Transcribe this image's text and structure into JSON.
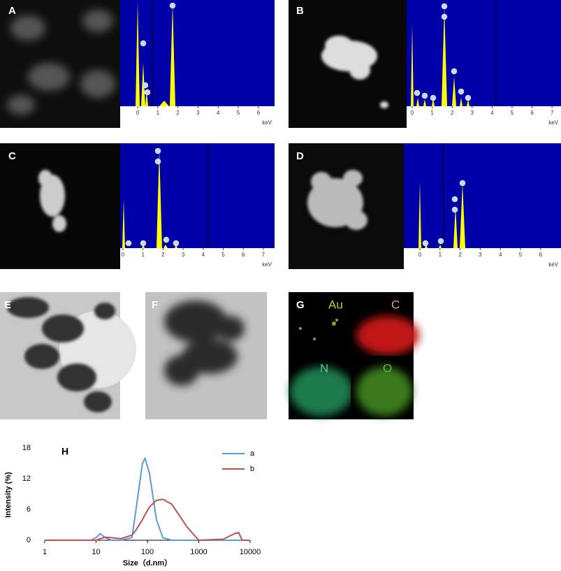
{
  "panels": {
    "A": {
      "label": "A",
      "kev_ticks": [
        0,
        1,
        2,
        3,
        4,
        5,
        6
      ],
      "unit": "keV"
    },
    "B": {
      "label": "B",
      "kev_ticks": [
        0,
        1,
        2,
        3,
        4,
        5,
        6,
        7
      ],
      "unit": "keV"
    },
    "C": {
      "label": "C",
      "kev_ticks": [
        0,
        1,
        2,
        3,
        4,
        5,
        6,
        7
      ],
      "unit": "keV"
    },
    "D": {
      "label": "D",
      "kev_ticks": [
        0,
        1,
        2,
        3,
        4,
        5,
        6
      ],
      "unit": "keV"
    },
    "E": {
      "label": "E"
    },
    "F": {
      "label": "F"
    },
    "G": {
      "label": "G",
      "elements": [
        "Au",
        "C",
        "N",
        "O"
      ]
    }
  },
  "chart_data": {
    "type": "line",
    "label": "H",
    "x_label": "Size（d.nm）",
    "y_label": "Intensity  (%)",
    "xscale": "log",
    "xlim": [
      1,
      10000
    ],
    "xticks": [
      1,
      10,
      100,
      1000,
      10000
    ],
    "ylim": [
      0,
      18
    ],
    "yticks": [
      0,
      6,
      12,
      18
    ],
    "x": [
      1,
      8,
      10,
      12,
      15,
      20,
      30,
      50,
      60,
      80,
      90,
      110,
      150,
      200,
      300,
      600,
      1000,
      3000,
      5000,
      6000,
      7000,
      10000
    ],
    "series": [
      {
        "name": "a",
        "color": "#5b9bd5",
        "values": [
          0,
          0,
          0.5,
          1.3,
          0.5,
          0,
          0,
          0.5,
          6,
          15,
          16,
          13,
          4,
          0.5,
          0,
          0,
          0,
          0,
          0,
          0,
          0,
          0
        ]
      },
      {
        "name": "b",
        "color": "#c0504d",
        "values": [
          0,
          0,
          0,
          0.3,
          0.6,
          0.5,
          0.3,
          1,
          2,
          4,
          5,
          6.5,
          7.8,
          8,
          7,
          2.5,
          0,
          0.2,
          1.3,
          1.5,
          0,
          0
        ]
      }
    ]
  }
}
